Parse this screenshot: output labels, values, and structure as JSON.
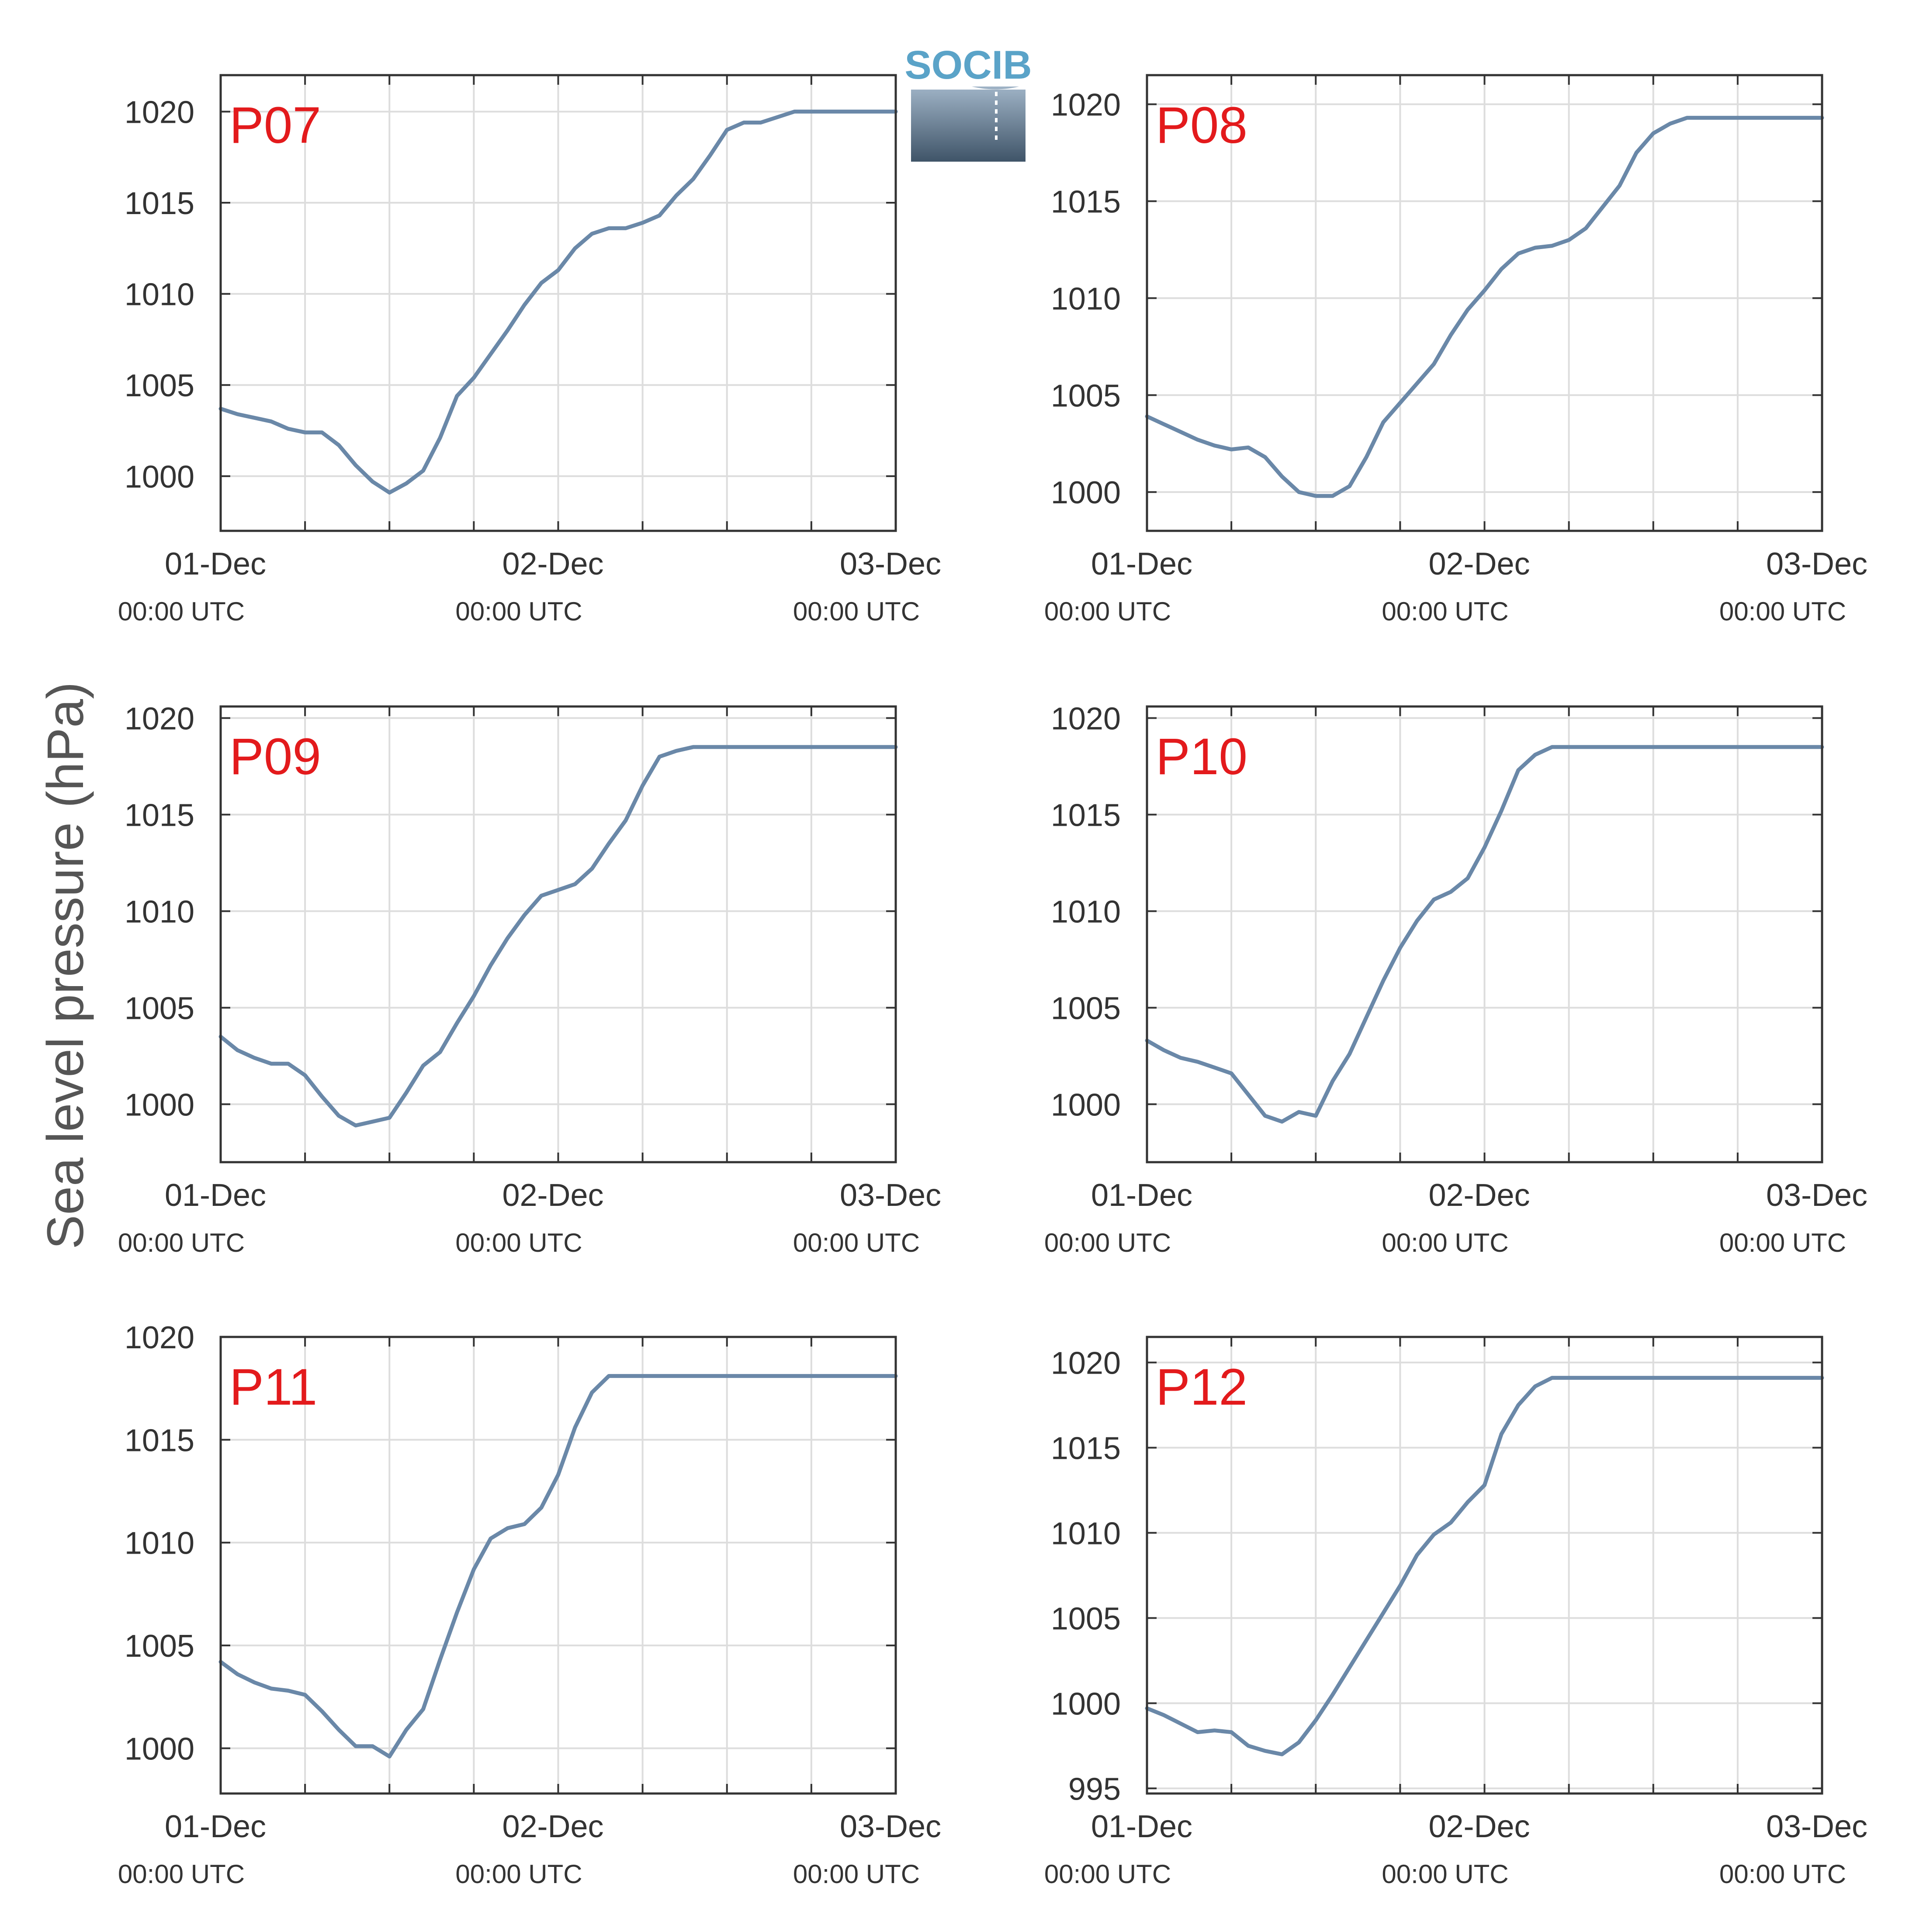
{
  "ylabel": "Sea level pressure (hPa)",
  "logo": {
    "text": "SOCIB"
  },
  "colors": {
    "line": "#6a88a8",
    "grid": "#dddddd",
    "axes": "#333333",
    "panel_label": "#e31a1c",
    "logo_text": "#5aa3c8",
    "logo_top": "#9fb3c6",
    "logo_bottom": "#3f5468"
  },
  "x_ticks": [
    {
      "day": 0,
      "date": "01-Dec",
      "time": "00:00 UTC"
    },
    {
      "day": 1,
      "date": "02-Dec",
      "time": "00:00 UTC"
    },
    {
      "day": 2,
      "date": "03-Dec",
      "time": "00:00 UTC"
    }
  ],
  "chart_data": [
    {
      "type": "line",
      "label": "P07",
      "xlim": [
        0,
        2
      ],
      "ylim": [
        997,
        1022
      ],
      "yticks": [
        1000,
        1005,
        1010,
        1015,
        1020
      ],
      "x": [
        0,
        0.05,
        0.1,
        0.15,
        0.2,
        0.25,
        0.3,
        0.35,
        0.4,
        0.45,
        0.5,
        0.55,
        0.6,
        0.65,
        0.7,
        0.75,
        0.8,
        0.85,
        0.9,
        0.95,
        1.0,
        1.05,
        1.1,
        1.15,
        1.2,
        1.25,
        1.3,
        1.35,
        1.4,
        1.45,
        1.5,
        1.55,
        1.6,
        1.65,
        1.7,
        1.75,
        1.8,
        1.85,
        1.9,
        1.95,
        2.0
      ],
      "y": [
        1003.7,
        1003.4,
        1003.2,
        1003.0,
        1002.6,
        1002.4,
        1002.4,
        1001.7,
        1000.6,
        999.7,
        999.1,
        999.6,
        1000.3,
        1002.1,
        1004.4,
        1005.4,
        1006.7,
        1008.0,
        1009.4,
        1010.6,
        1011.3,
        1012.5,
        1013.3,
        1013.6,
        1013.6,
        1013.9,
        1014.3,
        1015.4,
        1016.3,
        1017.6,
        1019.0,
        1019.4,
        1019.4,
        1019.7,
        1020.0,
        1020.0,
        1020.0,
        1020.0,
        1020.0,
        1020.0,
        1020.0
      ]
    },
    {
      "type": "line",
      "label": "P08",
      "xlim": [
        0,
        2
      ],
      "ylim": [
        998,
        1021.5
      ],
      "yticks": [
        1000,
        1005,
        1010,
        1015,
        1020
      ],
      "x": [
        0,
        0.05,
        0.1,
        0.15,
        0.2,
        0.25,
        0.3,
        0.35,
        0.4,
        0.45,
        0.5,
        0.55,
        0.6,
        0.65,
        0.7,
        0.75,
        0.8,
        0.85,
        0.9,
        0.95,
        1.0,
        1.05,
        1.1,
        1.15,
        1.2,
        1.25,
        1.3,
        1.35,
        1.4,
        1.45,
        1.5,
        1.55,
        1.6,
        1.65,
        1.7,
        1.75,
        1.8,
        1.85,
        1.9,
        1.95,
        2.0
      ],
      "y": [
        1003.9,
        1003.5,
        1003.1,
        1002.7,
        1002.4,
        1002.2,
        1002.3,
        1001.8,
        1000.8,
        1000.0,
        999.8,
        999.8,
        1000.3,
        1001.8,
        1003.6,
        1004.6,
        1005.6,
        1006.6,
        1008.1,
        1009.4,
        1010.4,
        1011.5,
        1012.3,
        1012.6,
        1012.7,
        1013.0,
        1013.6,
        1014.7,
        1015.8,
        1017.5,
        1018.5,
        1019.0,
        1019.3,
        1019.3,
        1019.3,
        1019.3,
        1019.3,
        1019.3,
        1019.3,
        1019.3,
        1019.3
      ]
    },
    {
      "type": "line",
      "label": "P09",
      "xlim": [
        0,
        2
      ],
      "ylim": [
        997,
        1020.6
      ],
      "yticks": [
        1000,
        1005,
        1010,
        1015,
        1020
      ],
      "x": [
        0,
        0.05,
        0.1,
        0.15,
        0.2,
        0.25,
        0.3,
        0.35,
        0.4,
        0.45,
        0.5,
        0.55,
        0.6,
        0.65,
        0.7,
        0.75,
        0.8,
        0.85,
        0.9,
        0.95,
        1.0,
        1.05,
        1.1,
        1.15,
        1.2,
        1.25,
        1.3,
        1.35,
        1.4,
        1.45,
        1.5,
        1.55,
        1.6,
        1.65,
        1.7,
        1.75,
        1.8,
        1.85,
        1.9,
        1.95,
        2.0
      ],
      "y": [
        1003.5,
        1002.8,
        1002.4,
        1002.1,
        1002.1,
        1001.5,
        1000.4,
        999.4,
        998.9,
        999.1,
        999.3,
        1000.6,
        1002.0,
        1002.7,
        1004.2,
        1005.6,
        1007.2,
        1008.6,
        1009.8,
        1010.8,
        1011.1,
        1011.4,
        1012.2,
        1013.5,
        1014.7,
        1016.5,
        1018.0,
        1018.3,
        1018.5,
        1018.5,
        1018.5,
        1018.5,
        1018.5,
        1018.5,
        1018.5,
        1018.5,
        1018.5,
        1018.5,
        1018.5,
        1018.5,
        1018.5
      ]
    },
    {
      "type": "line",
      "label": "P10",
      "xlim": [
        0,
        2
      ],
      "ylim": [
        997,
        1020.6
      ],
      "yticks": [
        1000,
        1005,
        1010,
        1015,
        1020
      ],
      "x": [
        0,
        0.05,
        0.1,
        0.15,
        0.2,
        0.25,
        0.3,
        0.35,
        0.4,
        0.45,
        0.5,
        0.55,
        0.6,
        0.65,
        0.7,
        0.75,
        0.8,
        0.85,
        0.9,
        0.95,
        1.0,
        1.05,
        1.1,
        1.15,
        1.2,
        1.25,
        1.3,
        1.35,
        1.4,
        1.45,
        1.5,
        1.55,
        1.6,
        1.65,
        1.7,
        1.75,
        1.8,
        1.85,
        1.9,
        1.95,
        2.0
      ],
      "y": [
        1003.3,
        1002.8,
        1002.4,
        1002.2,
        1001.9,
        1001.6,
        1000.5,
        999.4,
        999.1,
        999.6,
        999.4,
        1001.2,
        1002.6,
        1004.5,
        1006.4,
        1008.1,
        1009.5,
        1010.6,
        1011.0,
        1011.7,
        1013.3,
        1015.2,
        1017.3,
        1018.1,
        1018.5,
        1018.5,
        1018.5,
        1018.5,
        1018.5,
        1018.5,
        1018.5,
        1018.5,
        1018.5,
        1018.5,
        1018.5,
        1018.5,
        1018.5,
        1018.5,
        1018.5,
        1018.5,
        1018.5
      ]
    },
    {
      "type": "line",
      "label": "P11",
      "xlim": [
        0,
        2
      ],
      "ylim": [
        997.8,
        1020
      ],
      "yticks": [
        1000,
        1005,
        1010,
        1015,
        1020
      ],
      "x": [
        0,
        0.05,
        0.1,
        0.15,
        0.2,
        0.25,
        0.3,
        0.35,
        0.4,
        0.45,
        0.5,
        0.55,
        0.6,
        0.65,
        0.7,
        0.75,
        0.8,
        0.85,
        0.9,
        0.95,
        1.0,
        1.05,
        1.1,
        1.15,
        1.2,
        1.25,
        1.3,
        1.35,
        1.4,
        1.45,
        1.5,
        1.55,
        1.6,
        1.65,
        1.7,
        1.75,
        1.8,
        1.85,
        1.9,
        1.95,
        2.0
      ],
      "y": [
        1004.2,
        1003.6,
        1003.2,
        1002.9,
        1002.8,
        1002.6,
        1001.8,
        1000.9,
        1000.1,
        1000.1,
        999.6,
        1000.9,
        1001.9,
        1004.3,
        1006.6,
        1008.7,
        1010.2,
        1010.7,
        1010.9,
        1011.7,
        1013.3,
        1015.6,
        1017.3,
        1018.1,
        1018.1,
        1018.1,
        1018.1,
        1018.1,
        1018.1,
        1018.1,
        1018.1,
        1018.1,
        1018.1,
        1018.1,
        1018.1,
        1018.1,
        1018.1,
        1018.1,
        1018.1,
        1018.1,
        1018.1
      ]
    },
    {
      "type": "line",
      "label": "P12",
      "xlim": [
        0,
        2
      ],
      "ylim": [
        994.7,
        1021.5
      ],
      "yticks": [
        995,
        1000,
        1005,
        1010,
        1015,
        1020
      ],
      "x": [
        0,
        0.05,
        0.1,
        0.15,
        0.2,
        0.25,
        0.3,
        0.35,
        0.4,
        0.45,
        0.5,
        0.55,
        0.6,
        0.65,
        0.7,
        0.75,
        0.8,
        0.85,
        0.9,
        0.95,
        1.0,
        1.05,
        1.1,
        1.15,
        1.2,
        1.25,
        1.3,
        1.35,
        1.4,
        1.45,
        1.5,
        1.55,
        1.6,
        1.65,
        1.7,
        1.75,
        1.8,
        1.85,
        1.9,
        1.95,
        2.0
      ],
      "y": [
        999.7,
        999.3,
        998.8,
        998.3,
        998.4,
        998.3,
        997.5,
        997.2,
        997.0,
        997.7,
        999.0,
        1000.5,
        1002.1,
        1003.7,
        1005.3,
        1006.9,
        1008.7,
        1009.9,
        1010.6,
        1011.8,
        1012.8,
        1015.8,
        1017.5,
        1018.6,
        1019.1,
        1019.1,
        1019.1,
        1019.1,
        1019.1,
        1019.1,
        1019.1,
        1019.1,
        1019.1,
        1019.1,
        1019.1,
        1019.1,
        1019.1,
        1019.1,
        1019.1,
        1019.1,
        1019.1
      ]
    }
  ]
}
